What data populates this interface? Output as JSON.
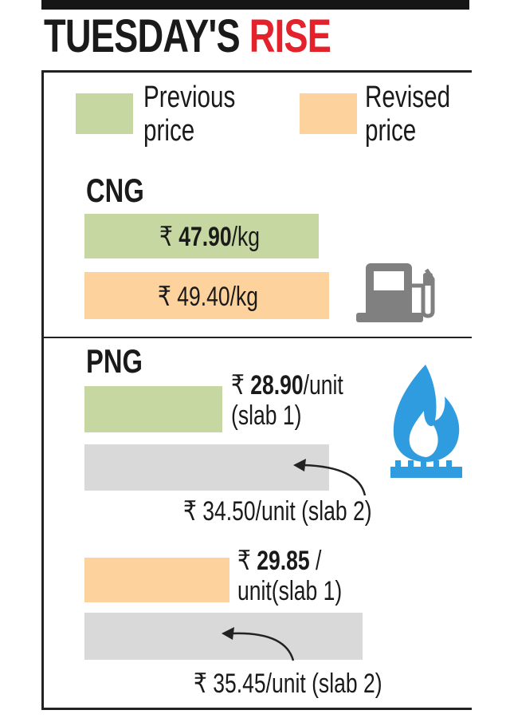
{
  "title": {
    "part1": "TUESDAY'S",
    "part2": "RISE"
  },
  "legend": [
    {
      "label_line1": "Previous",
      "label_line2": "price",
      "color": "#c6d7a1"
    },
    {
      "label_line1": "Revised",
      "label_line2": "price",
      "color": "#fdd29c"
    }
  ],
  "colors": {
    "slab2": "#d9d9d9",
    "accent": "#e3222b",
    "flame": "#2f9ce0",
    "pump": "#808080"
  },
  "cng": {
    "label": "CNG",
    "previous": {
      "currency": "₹",
      "value": "47.90",
      "unit": "/kg"
    },
    "revised": {
      "currency": "₹",
      "value": "49.40",
      "unit": "/kg"
    }
  },
  "png": {
    "label": "PNG",
    "previous_slab1": {
      "currency": "₹",
      "value": "28.90",
      "unit": "/unit",
      "line2": "(slab 1)"
    },
    "previous_slab2": {
      "text": "₹ 34.50/unit (slab 2)"
    },
    "revised_slab1": {
      "currency": "₹",
      "value": "29.85",
      "unit": " /",
      "line2": "unit(slab 1)"
    },
    "revised_slab2": {
      "text": "₹ 35.45/unit (slab 2)"
    }
  },
  "chart_data": {
    "type": "bar",
    "title": "TUESDAY'S RISE",
    "orientation": "horizontal",
    "legend": [
      "Previous price",
      "Revised price"
    ],
    "groups": [
      {
        "name": "CNG",
        "unit": "₹/kg",
        "bars": [
          {
            "series": "Previous price",
            "value": 47.9
          },
          {
            "series": "Revised price",
            "value": 49.4
          }
        ]
      },
      {
        "name": "PNG",
        "unit": "₹/unit",
        "bars": [
          {
            "series": "Previous price",
            "slab": "slab 1",
            "value": 28.9
          },
          {
            "series": "Previous price",
            "slab": "slab 2",
            "value": 34.5
          },
          {
            "series": "Revised price",
            "slab": "slab 1",
            "value": 29.85
          },
          {
            "series": "Revised price",
            "slab": "slab 2",
            "value": 35.45
          }
        ]
      }
    ]
  }
}
